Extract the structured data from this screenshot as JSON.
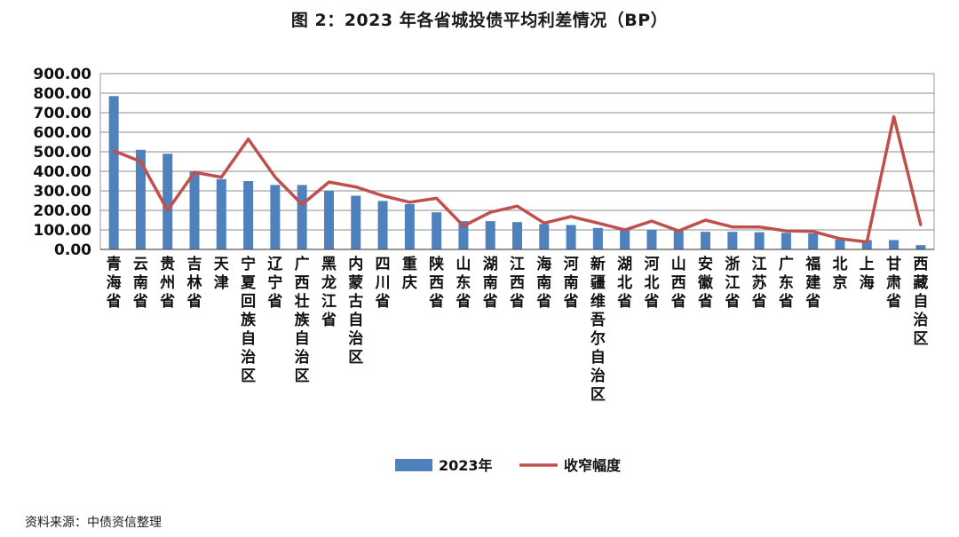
{
  "chart_data": {
    "type": "bar",
    "title": "图 2：2023 年各省城投债平均利差情况（BP）",
    "source": "资料来源：中债资信整理",
    "ylim": [
      0,
      900
    ],
    "yticks": [
      "900.00",
      "800.00",
      "700.00",
      "600.00",
      "500.00",
      "400.00",
      "300.00",
      "200.00",
      "100.00",
      "0.00"
    ],
    "grid": true,
    "legend_position": "bottom",
    "categories": [
      "青海省",
      "云南省",
      "贵州省",
      "吉林省",
      "天津",
      "宁夏回族自治区",
      "辽宁省",
      "广西壮族自治区",
      "黑龙江省",
      "内蒙古自治区",
      "四川省",
      "重庆",
      "陕西省",
      "山东省",
      "湖南省",
      "江西省",
      "海南省",
      "河南省",
      "新疆维吾尔自治区",
      "湖北省",
      "河北省",
      "山西省",
      "安徽省",
      "浙江省",
      "江苏省",
      "广东省",
      "福建省",
      "北京",
      "上海",
      "甘肃省",
      "西藏自治区"
    ],
    "series": [
      {
        "name": "2023年",
        "type": "bar",
        "color": "#4f81bd",
        "values": [
          785,
          510,
          490,
          400,
          360,
          350,
          330,
          330,
          300,
          275,
          248,
          232,
          190,
          145,
          145,
          140,
          130,
          125,
          110,
          100,
          100,
          95,
          90,
          90,
          88,
          85,
          82,
          50,
          48,
          48,
          22
        ]
      },
      {
        "name": "收窄幅度",
        "type": "line",
        "color": "#c0504d",
        "values": [
          505,
          450,
          200,
          395,
          370,
          565,
          370,
          230,
          345,
          320,
          275,
          242,
          262,
          120,
          190,
          222,
          135,
          168,
          135,
          100,
          145,
          95,
          150,
          115,
          115,
          95,
          92,
          55,
          38,
          680,
          125
        ]
      }
    ]
  }
}
